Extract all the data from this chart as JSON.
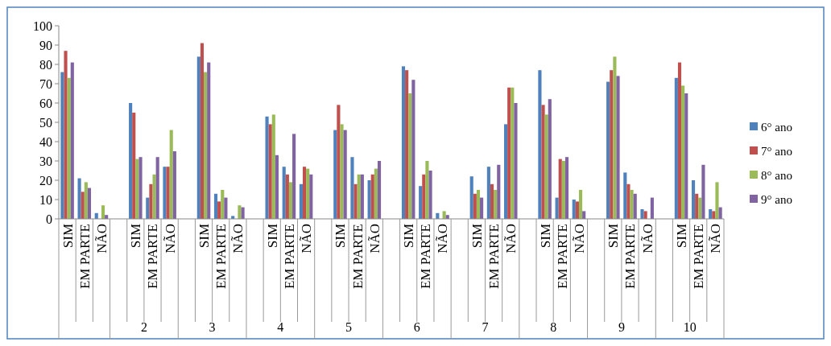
{
  "chart_data": {
    "type": "bar",
    "categories": [
      "SIM",
      "EM PARTE",
      "NÃO",
      null,
      "SIM",
      "EM PARTE",
      "NÃO",
      null,
      "SIM",
      "EM PARTE",
      "NÃO",
      null,
      "SIM",
      "EM PARTE",
      "NÃO",
      null,
      "SIM",
      "EM PARTE",
      "NÃO",
      null,
      "SIM",
      "EM PARTE",
      "NÃO",
      null,
      "SIM",
      "EM PARTE",
      "NÃO",
      null,
      "SIM",
      "EM PARTE",
      "NÃO",
      null,
      "SIM",
      "EM PARTE",
      "NÃO",
      null,
      "SIM",
      "EM PARTE",
      "NÃO"
    ],
    "series": [
      {
        "name": "6° ano",
        "color": "#4f81bd",
        "values": [
          76,
          21,
          3,
          null,
          60,
          11,
          27,
          null,
          84,
          13,
          1.5,
          null,
          53,
          27,
          18,
          null,
          46,
          32,
          20,
          null,
          79,
          17,
          3,
          null,
          22,
          27,
          49,
          null,
          77,
          11,
          10,
          null,
          71,
          24,
          5,
          null,
          73,
          20,
          5
        ]
      },
      {
        "name": "7° ano",
        "color": "#c0504d",
        "values": [
          87,
          14,
          0,
          null,
          55,
          18,
          27,
          null,
          91,
          9,
          0,
          null,
          49,
          23,
          27,
          null,
          59,
          18,
          23,
          null,
          77,
          23,
          0,
          null,
          13,
          18,
          68,
          null,
          59,
          31,
          9,
          null,
          77,
          18,
          4,
          null,
          81,
          13,
          4
        ]
      },
      {
        "name": "8° ano",
        "color": "#9bbb59",
        "values": [
          73,
          19,
          7,
          null,
          31,
          23,
          46,
          null,
          76,
          15,
          7,
          null,
          54,
          19,
          26,
          null,
          49,
          23,
          26,
          null,
          65,
          30,
          4,
          null,
          15,
          15,
          68,
          null,
          54,
          30,
          15,
          null,
          84,
          15,
          0,
          null,
          69,
          11,
          19
        ]
      },
      {
        "name": "9° ano",
        "color": "#8064a2",
        "values": [
          81,
          16,
          2,
          null,
          32,
          32,
          35,
          null,
          81,
          11,
          6,
          null,
          33,
          44,
          23,
          null,
          46,
          23,
          30,
          null,
          72,
          25,
          2,
          null,
          11,
          28,
          60,
          null,
          62,
          32,
          4,
          null,
          74,
          13,
          11,
          null,
          65,
          28,
          6
        ]
      }
    ],
    "ylim": [
      0,
      100
    ],
    "yticks": [
      0,
      10,
      20,
      30,
      40,
      50,
      60,
      70,
      80,
      90,
      100
    ],
    "legend": "right",
    "grid": false,
    "annotations": [
      "2",
      "3",
      "4",
      "5",
      "6",
      "7",
      "8",
      "9",
      "10"
    ]
  }
}
